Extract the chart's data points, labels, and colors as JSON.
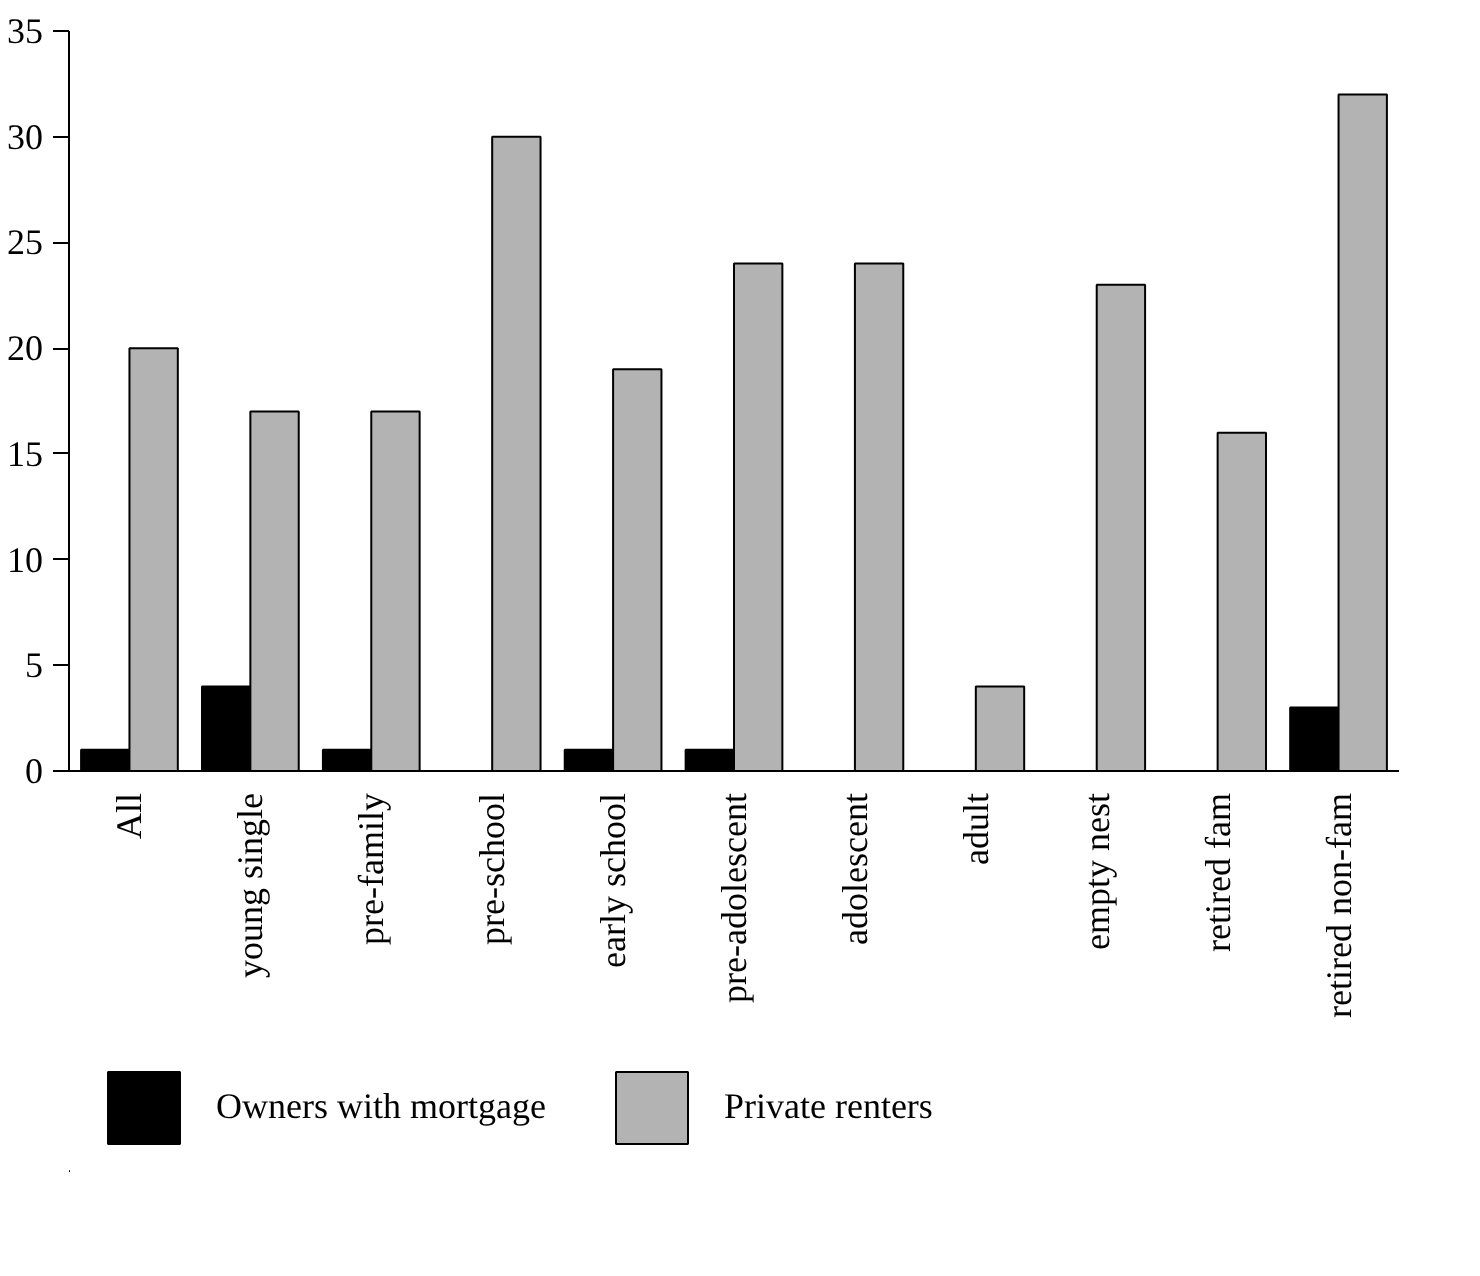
{
  "chart_data": {
    "type": "bar",
    "categories": [
      "All",
      "young single",
      "pre-family",
      "pre-school",
      "early school",
      "pre-adolescent",
      "adolescent",
      "adult",
      "empty nest",
      "retired fam",
      "retired non-fam"
    ],
    "series": [
      {
        "name": "Owners with mortgage",
        "color": "#000000",
        "values": [
          1,
          4,
          1,
          0,
          1,
          1,
          0,
          0,
          0,
          0,
          3
        ]
      },
      {
        "name": "Private renters",
        "color": "#b3b3b3",
        "values": [
          20,
          17,
          17,
          30,
          19,
          24,
          24,
          4,
          23,
          16,
          32
        ]
      }
    ],
    "ylim": [
      0,
      35
    ],
    "yticks": [
      0,
      5,
      10,
      15,
      20,
      25,
      30,
      35
    ],
    "grid": false,
    "legend": "bottom"
  }
}
